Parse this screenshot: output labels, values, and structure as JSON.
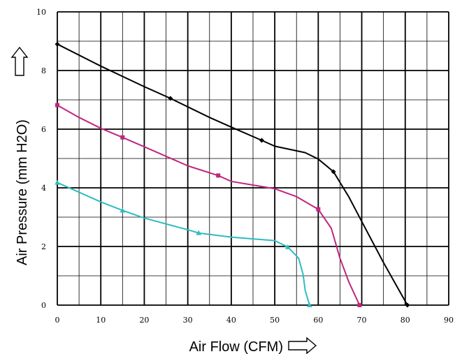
{
  "chart_data": {
    "type": "line",
    "title": "",
    "xlabel": "Air Flow (CFM)",
    "ylabel": "Air Pressure (mm H2O)",
    "xlim": [
      0,
      90
    ],
    "ylim": [
      0,
      10
    ],
    "x_ticks": [
      "0",
      "10",
      "20",
      "30",
      "40",
      "50",
      "60",
      "70",
      "80",
      "90"
    ],
    "y_ticks": [
      "0",
      "2",
      "4",
      "6",
      "8",
      "10"
    ],
    "grid": true,
    "series": [
      {
        "color": "#000000",
        "marker": "diamond",
        "line": [
          [
            0,
            8.9
          ],
          [
            10,
            8.15
          ],
          [
            20,
            7.45
          ],
          [
            26,
            7.05
          ],
          [
            35,
            6.4
          ],
          [
            40,
            6.07
          ],
          [
            47,
            5.62
          ],
          [
            50,
            5.42
          ],
          [
            57,
            5.2
          ],
          [
            60,
            4.98
          ],
          [
            63.5,
            4.55
          ],
          [
            67,
            3.7
          ],
          [
            70,
            2.85
          ],
          [
            75,
            1.45
          ],
          [
            80.5,
            0
          ]
        ],
        "markers": [
          [
            0,
            8.9
          ],
          [
            26,
            7.05
          ],
          [
            47,
            5.62
          ],
          [
            63.5,
            4.55
          ],
          [
            80.5,
            0
          ]
        ]
      },
      {
        "color": "#c0267e",
        "marker": "square",
        "line": [
          [
            0,
            6.82
          ],
          [
            5,
            6.4
          ],
          [
            10,
            6.03
          ],
          [
            15,
            5.72
          ],
          [
            20,
            5.4
          ],
          [
            30,
            4.75
          ],
          [
            37,
            4.42
          ],
          [
            40,
            4.22
          ],
          [
            50,
            3.97
          ],
          [
            55,
            3.7
          ],
          [
            60,
            3.27
          ],
          [
            63,
            2.62
          ],
          [
            65,
            1.6
          ],
          [
            67,
            0.8
          ],
          [
            69.5,
            0
          ]
        ],
        "markers": [
          [
            0,
            6.82
          ],
          [
            15,
            5.72
          ],
          [
            37,
            4.42
          ],
          [
            60,
            3.27
          ],
          [
            69.5,
            0
          ]
        ]
      },
      {
        "color": "#2ebcc0",
        "marker": "triangle",
        "line": [
          [
            0,
            4.18
          ],
          [
            5,
            3.85
          ],
          [
            10,
            3.52
          ],
          [
            15,
            3.23
          ],
          [
            20,
            2.97
          ],
          [
            30,
            2.57
          ],
          [
            32.5,
            2.46
          ],
          [
            40,
            2.32
          ],
          [
            50,
            2.2
          ],
          [
            53,
            1.98
          ],
          [
            55.5,
            1.6
          ],
          [
            56.5,
            1.05
          ],
          [
            57,
            0.5
          ],
          [
            58,
            0
          ]
        ],
        "markers": [
          [
            0,
            4.18
          ],
          [
            15,
            3.23
          ],
          [
            32.5,
            2.46
          ],
          [
            53,
            1.98
          ],
          [
            58,
            0
          ]
        ]
      }
    ],
    "icons": [
      "up-arrow-icon",
      "right-arrow-icon"
    ]
  }
}
